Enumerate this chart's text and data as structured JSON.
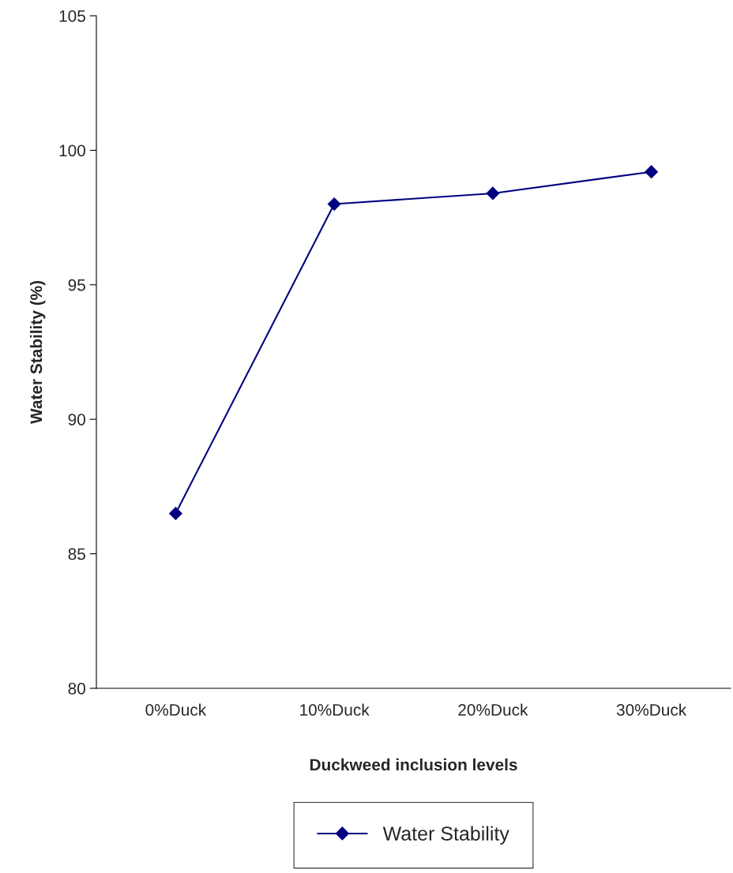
{
  "chart_data": {
    "type": "line",
    "xlabel": "Duckweed inclusion levels",
    "ylabel": "Water Stability (%)",
    "categories": [
      "0%Duck",
      "10%Duck",
      "20%Duck",
      "30%Duck"
    ],
    "series": [
      {
        "name": "Water Stability",
        "color": "#000080",
        "values": [
          86.5,
          98.0,
          98.4,
          99.2
        ]
      }
    ],
    "ylim": [
      80,
      105
    ],
    "yticks": [
      80,
      85,
      90,
      95,
      100,
      105
    ],
    "marker": "diamond",
    "line_style": "solid",
    "grid": false,
    "legend": "bottom"
  }
}
